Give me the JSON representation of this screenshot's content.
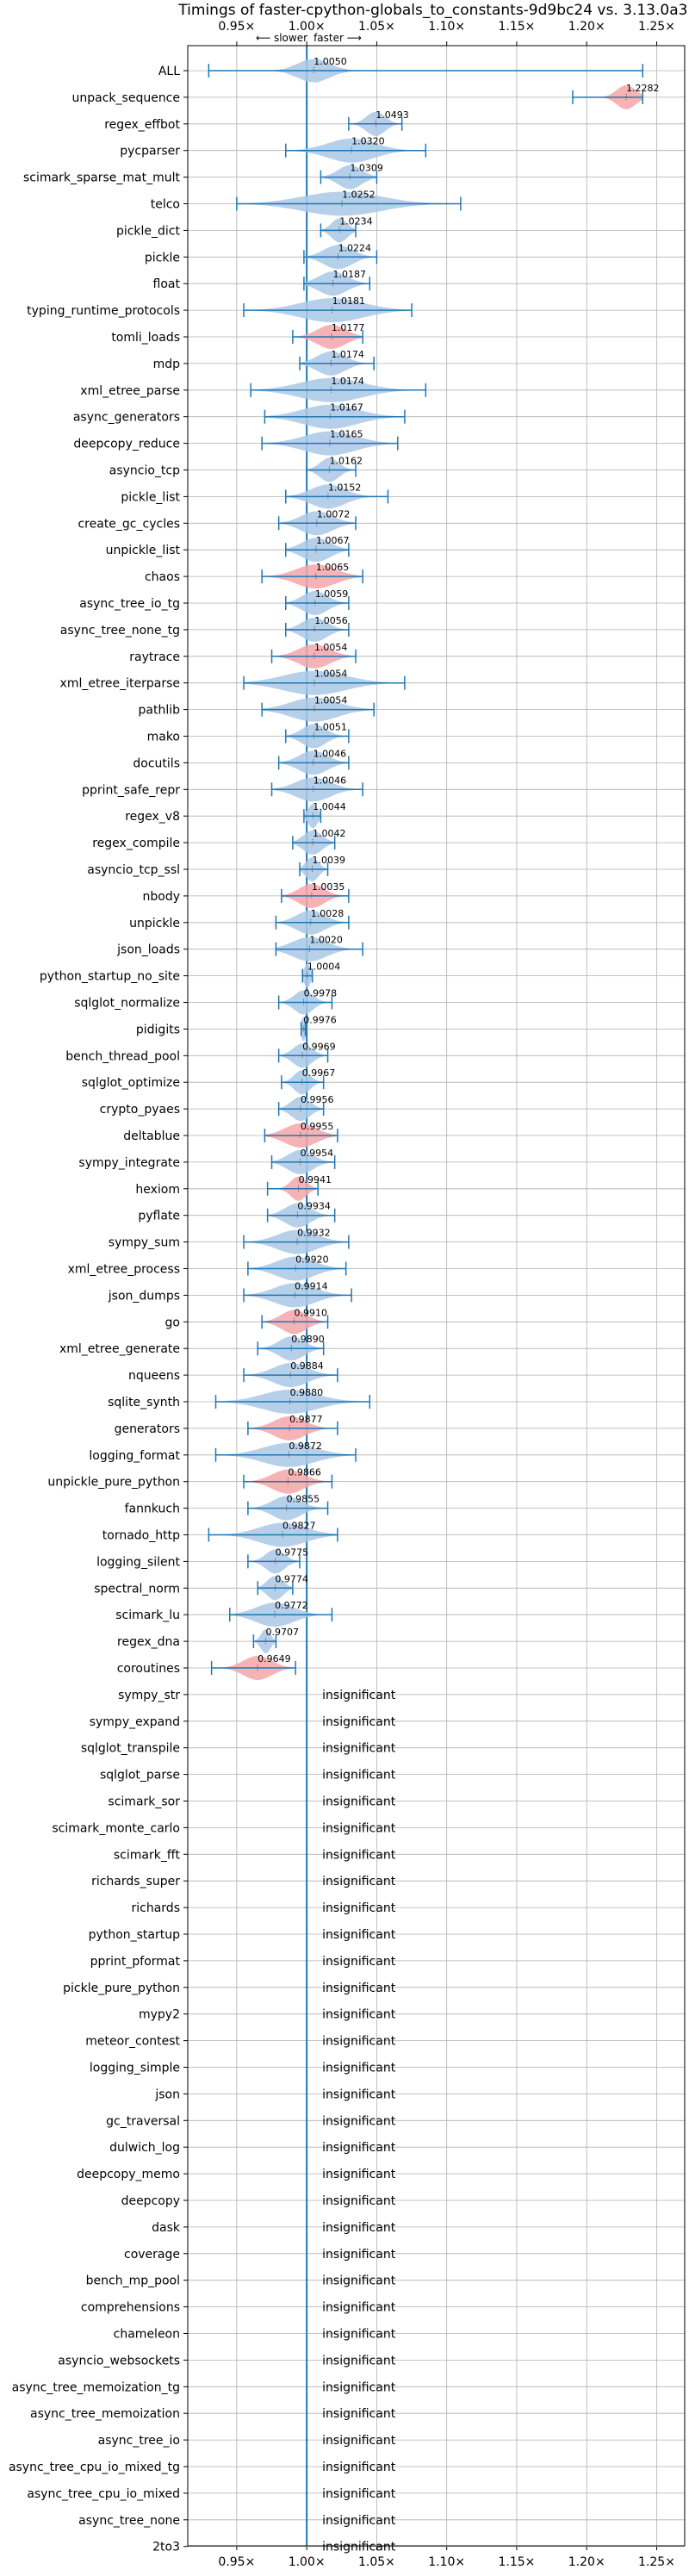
{
  "chart_data": {
    "type": "violin",
    "title": "Timings of faster-cpython-globals_to_constants-9d9bc24 vs. 3.13.0a3+",
    "direction": {
      "slower": "⟵ slower",
      "faster": "faster ⟶"
    },
    "x_ticks": [
      "0.95×",
      "1.00×",
      "1.05×",
      "1.10×",
      "1.15×",
      "1.20×",
      "1.25×"
    ],
    "x_tick_values": [
      0.95,
      1.0,
      1.05,
      1.1,
      1.15,
      1.2,
      1.25
    ],
    "xlim": [
      0.915,
      1.27
    ],
    "reference_line": 1.0,
    "grid": true,
    "colors": {
      "faster": "#aac8e6",
      "slower": "#f4a6a9",
      "line": "#1f77b4",
      "grid": "#b0b0b0"
    },
    "insignificant_label": "insignificant",
    "benchmarks": [
      {
        "name": "ALL",
        "value": 1.005,
        "label": "1.0050",
        "min": 0.93,
        "max": 1.24,
        "spread": 0.02,
        "color": "faster"
      },
      {
        "name": "unpack_sequence",
        "value": 1.2282,
        "label": "1.2282",
        "min": 1.19,
        "max": 1.24,
        "spread": 0.012,
        "color": "slower"
      },
      {
        "name": "regex_effbot",
        "value": 1.0493,
        "label": "1.0493",
        "min": 1.03,
        "max": 1.068,
        "spread": 0.012,
        "color": "faster"
      },
      {
        "name": "pycparser",
        "value": 1.032,
        "label": "1.0320",
        "min": 0.985,
        "max": 1.085,
        "spread": 0.03,
        "color": "faster"
      },
      {
        "name": "scimark_sparse_mat_mult",
        "value": 1.0309,
        "label": "1.0309",
        "min": 1.01,
        "max": 1.05,
        "spread": 0.015,
        "color": "faster"
      },
      {
        "name": "telco",
        "value": 1.0252,
        "label": "1.0252",
        "min": 0.95,
        "max": 1.11,
        "spread": 0.05,
        "color": "faster"
      },
      {
        "name": "pickle_dict",
        "value": 1.0234,
        "label": "1.0234",
        "min": 1.01,
        "max": 1.035,
        "spread": 0.01,
        "color": "faster"
      },
      {
        "name": "pickle",
        "value": 1.0224,
        "label": "1.0224",
        "min": 0.998,
        "max": 1.05,
        "spread": 0.018,
        "color": "faster"
      },
      {
        "name": "float",
        "value": 1.0187,
        "label": "1.0187",
        "min": 0.998,
        "max": 1.045,
        "spread": 0.018,
        "color": "faster"
      },
      {
        "name": "typing_runtime_protocols",
        "value": 1.0181,
        "label": "1.0181",
        "min": 0.955,
        "max": 1.075,
        "spread": 0.04,
        "color": "faster"
      },
      {
        "name": "tomli_loads",
        "value": 1.0177,
        "label": "1.0177",
        "min": 0.99,
        "max": 1.04,
        "spread": 0.018,
        "color": "slower"
      },
      {
        "name": "mdp",
        "value": 1.0174,
        "label": "1.0174",
        "min": 0.995,
        "max": 1.048,
        "spread": 0.018,
        "color": "faster"
      },
      {
        "name": "xml_etree_parse",
        "value": 1.0174,
        "label": "1.0174",
        "min": 0.96,
        "max": 1.085,
        "spread": 0.04,
        "color": "faster"
      },
      {
        "name": "async_generators",
        "value": 1.0167,
        "label": "1.0167",
        "min": 0.97,
        "max": 1.07,
        "spread": 0.035,
        "color": "faster"
      },
      {
        "name": "deepcopy_reduce",
        "value": 1.0165,
        "label": "1.0165",
        "min": 0.968,
        "max": 1.065,
        "spread": 0.033,
        "color": "faster"
      },
      {
        "name": "asyncio_tcp",
        "value": 1.0162,
        "label": "1.0162",
        "min": 1.0,
        "max": 1.035,
        "spread": 0.012,
        "color": "faster"
      },
      {
        "name": "pickle_list",
        "value": 1.0152,
        "label": "1.0152",
        "min": 0.985,
        "max": 1.058,
        "spread": 0.022,
        "color": "faster"
      },
      {
        "name": "create_gc_cycles",
        "value": 1.0072,
        "label": "1.0072",
        "min": 0.98,
        "max": 1.035,
        "spread": 0.02,
        "color": "faster"
      },
      {
        "name": "unpickle_list",
        "value": 1.0067,
        "label": "1.0067",
        "min": 0.985,
        "max": 1.03,
        "spread": 0.018,
        "color": "faster"
      },
      {
        "name": "chaos",
        "value": 1.0065,
        "label": "1.0065",
        "min": 0.968,
        "max": 1.04,
        "spread": 0.025,
        "color": "slower"
      },
      {
        "name": "async_tree_io_tg",
        "value": 1.0059,
        "label": "1.0059",
        "min": 0.985,
        "max": 1.03,
        "spread": 0.016,
        "color": "faster"
      },
      {
        "name": "async_tree_none_tg",
        "value": 1.0056,
        "label": "1.0056",
        "min": 0.985,
        "max": 1.03,
        "spread": 0.016,
        "color": "faster"
      },
      {
        "name": "raytrace",
        "value": 1.0054,
        "label": "1.0054",
        "min": 0.975,
        "max": 1.035,
        "spread": 0.02,
        "color": "slower"
      },
      {
        "name": "xml_etree_iterparse",
        "value": 1.0054,
        "label": "1.0054",
        "min": 0.955,
        "max": 1.07,
        "spread": 0.04,
        "color": "faster"
      },
      {
        "name": "pathlib",
        "value": 1.0054,
        "label": "1.0054",
        "min": 0.968,
        "max": 1.048,
        "spread": 0.03,
        "color": "faster"
      },
      {
        "name": "mako",
        "value": 1.0051,
        "label": "1.0051",
        "min": 0.985,
        "max": 1.03,
        "spread": 0.015,
        "color": "faster"
      },
      {
        "name": "docutils",
        "value": 1.0046,
        "label": "1.0046",
        "min": 0.98,
        "max": 1.03,
        "spread": 0.018,
        "color": "faster"
      },
      {
        "name": "pprint_safe_repr",
        "value": 1.0046,
        "label": "1.0046",
        "min": 0.975,
        "max": 1.04,
        "spread": 0.022,
        "color": "faster"
      },
      {
        "name": "regex_v8",
        "value": 1.0044,
        "label": "1.0044",
        "min": 0.998,
        "max": 1.01,
        "spread": 0.006,
        "color": "faster"
      },
      {
        "name": "regex_compile",
        "value": 1.0042,
        "label": "1.0042",
        "min": 0.99,
        "max": 1.02,
        "spread": 0.012,
        "color": "faster"
      },
      {
        "name": "asyncio_tcp_ssl",
        "value": 1.0039,
        "label": "1.0039",
        "min": 0.995,
        "max": 1.015,
        "spread": 0.008,
        "color": "faster"
      },
      {
        "name": "nbody",
        "value": 1.0035,
        "label": "1.0035",
        "min": 0.982,
        "max": 1.03,
        "spread": 0.016,
        "color": "slower"
      },
      {
        "name": "unpickle",
        "value": 1.0028,
        "label": "1.0028",
        "min": 0.978,
        "max": 1.03,
        "spread": 0.018,
        "color": "faster"
      },
      {
        "name": "json_loads",
        "value": 1.002,
        "label": "1.0020",
        "min": 0.978,
        "max": 1.04,
        "spread": 0.022,
        "color": "faster"
      },
      {
        "name": "python_startup_no_site",
        "value": 1.0004,
        "label": "1.0004",
        "min": 0.997,
        "max": 1.004,
        "spread": 0.004,
        "color": "faster"
      },
      {
        "name": "sqlglot_normalize",
        "value": 0.9978,
        "label": "0.9978",
        "min": 0.98,
        "max": 1.018,
        "spread": 0.012,
        "color": "faster"
      },
      {
        "name": "pidigits",
        "value": 0.9976,
        "label": "0.9976",
        "min": 0.996,
        "max": 0.999,
        "spread": 0.003,
        "color": "faster"
      },
      {
        "name": "bench_thread_pool",
        "value": 0.9969,
        "label": "0.9969",
        "min": 0.98,
        "max": 1.015,
        "spread": 0.012,
        "color": "faster"
      },
      {
        "name": "sqlglot_optimize",
        "value": 0.9967,
        "label": "0.9967",
        "min": 0.982,
        "max": 1.012,
        "spread": 0.01,
        "color": "faster"
      },
      {
        "name": "crypto_pyaes",
        "value": 0.9956,
        "label": "0.9956",
        "min": 0.98,
        "max": 1.012,
        "spread": 0.012,
        "color": "faster"
      },
      {
        "name": "deltablue",
        "value": 0.9955,
        "label": "0.9955",
        "min": 0.97,
        "max": 1.022,
        "spread": 0.02,
        "color": "slower"
      },
      {
        "name": "sympy_integrate",
        "value": 0.9954,
        "label": "0.9954",
        "min": 0.975,
        "max": 1.02,
        "spread": 0.016,
        "color": "faster"
      },
      {
        "name": "hexiom",
        "value": 0.9941,
        "label": "0.9941",
        "min": 0.972,
        "max": 1.008,
        "spread": 0.01,
        "color": "slower"
      },
      {
        "name": "pyflate",
        "value": 0.9934,
        "label": "0.9934",
        "min": 0.972,
        "max": 1.02,
        "spread": 0.016,
        "color": "faster"
      },
      {
        "name": "sympy_sum",
        "value": 0.9932,
        "label": "0.9932",
        "min": 0.955,
        "max": 1.03,
        "spread": 0.025,
        "color": "faster"
      },
      {
        "name": "xml_etree_process",
        "value": 0.992,
        "label": "0.9920",
        "min": 0.958,
        "max": 1.028,
        "spread": 0.024,
        "color": "faster"
      },
      {
        "name": "json_dumps",
        "value": 0.9914,
        "label": "0.9914",
        "min": 0.955,
        "max": 1.032,
        "spread": 0.026,
        "color": "faster"
      },
      {
        "name": "go",
        "value": 0.991,
        "label": "0.9910",
        "min": 0.968,
        "max": 1.015,
        "spread": 0.016,
        "color": "slower"
      },
      {
        "name": "xml_etree_generate",
        "value": 0.989,
        "label": "0.9890",
        "min": 0.965,
        "max": 1.012,
        "spread": 0.016,
        "color": "faster"
      },
      {
        "name": "nqueens",
        "value": 0.9884,
        "label": "0.9884",
        "min": 0.955,
        "max": 1.022,
        "spread": 0.022,
        "color": "faster"
      },
      {
        "name": "sqlite_synth",
        "value": 0.988,
        "label": "0.9880",
        "min": 0.935,
        "max": 1.045,
        "spread": 0.035,
        "color": "faster"
      },
      {
        "name": "generators",
        "value": 0.9877,
        "label": "0.9877",
        "min": 0.958,
        "max": 1.022,
        "spread": 0.02,
        "color": "slower"
      },
      {
        "name": "logging_format",
        "value": 0.9872,
        "label": "0.9872",
        "min": 0.935,
        "max": 1.035,
        "spread": 0.033,
        "color": "faster"
      },
      {
        "name": "unpickle_pure_python",
        "value": 0.9866,
        "label": "0.9866",
        "min": 0.955,
        "max": 1.018,
        "spread": 0.02,
        "color": "slower"
      },
      {
        "name": "fannkuch",
        "value": 0.9855,
        "label": "0.9855",
        "min": 0.958,
        "max": 1.015,
        "spread": 0.018,
        "color": "faster"
      },
      {
        "name": "tornado_http",
        "value": 0.9827,
        "label": "0.9827",
        "min": 0.93,
        "max": 1.022,
        "spread": 0.03,
        "color": "faster"
      },
      {
        "name": "logging_silent",
        "value": 0.9775,
        "label": "0.9775",
        "min": 0.958,
        "max": 0.995,
        "spread": 0.012,
        "color": "faster"
      },
      {
        "name": "spectral_norm",
        "value": 0.9774,
        "label": "0.9774",
        "min": 0.965,
        "max": 0.99,
        "spread": 0.01,
        "color": "faster"
      },
      {
        "name": "scimark_lu",
        "value": 0.9772,
        "label": "0.9772",
        "min": 0.945,
        "max": 1.018,
        "spread": 0.024,
        "color": "faster"
      },
      {
        "name": "regex_dna",
        "value": 0.9707,
        "label": "0.9707",
        "min": 0.962,
        "max": 0.978,
        "spread": 0.006,
        "color": "faster"
      },
      {
        "name": "coroutines",
        "value": 0.9649,
        "label": "0.9649",
        "min": 0.932,
        "max": 0.992,
        "spread": 0.018,
        "color": "slower"
      },
      {
        "name": "sympy_str",
        "insignificant": true
      },
      {
        "name": "sympy_expand",
        "insignificant": true
      },
      {
        "name": "sqlglot_transpile",
        "insignificant": true
      },
      {
        "name": "sqlglot_parse",
        "insignificant": true
      },
      {
        "name": "scimark_sor",
        "insignificant": true
      },
      {
        "name": "scimark_monte_carlo",
        "insignificant": true
      },
      {
        "name": "scimark_fft",
        "insignificant": true
      },
      {
        "name": "richards_super",
        "insignificant": true
      },
      {
        "name": "richards",
        "insignificant": true
      },
      {
        "name": "python_startup",
        "insignificant": true
      },
      {
        "name": "pprint_pformat",
        "insignificant": true
      },
      {
        "name": "pickle_pure_python",
        "insignificant": true
      },
      {
        "name": "mypy2",
        "insignificant": true
      },
      {
        "name": "meteor_contest",
        "insignificant": true
      },
      {
        "name": "logging_simple",
        "insignificant": true
      },
      {
        "name": "json",
        "insignificant": true
      },
      {
        "name": "gc_traversal",
        "insignificant": true
      },
      {
        "name": "dulwich_log",
        "insignificant": true
      },
      {
        "name": "deepcopy_memo",
        "insignificant": true
      },
      {
        "name": "deepcopy",
        "insignificant": true
      },
      {
        "name": "dask",
        "insignificant": true
      },
      {
        "name": "coverage",
        "insignificant": true
      },
      {
        "name": "bench_mp_pool",
        "insignificant": true
      },
      {
        "name": "comprehensions",
        "insignificant": true
      },
      {
        "name": "chameleon",
        "insignificant": true
      },
      {
        "name": "asyncio_websockets",
        "insignificant": true
      },
      {
        "name": "async_tree_memoization_tg",
        "insignificant": true
      },
      {
        "name": "async_tree_memoization",
        "insignificant": true
      },
      {
        "name": "async_tree_io",
        "insignificant": true
      },
      {
        "name": "async_tree_cpu_io_mixed_tg",
        "insignificant": true
      },
      {
        "name": "async_tree_cpu_io_mixed",
        "insignificant": true
      },
      {
        "name": "async_tree_none",
        "insignificant": true
      },
      {
        "name": "2to3",
        "insignificant": true
      }
    ]
  }
}
